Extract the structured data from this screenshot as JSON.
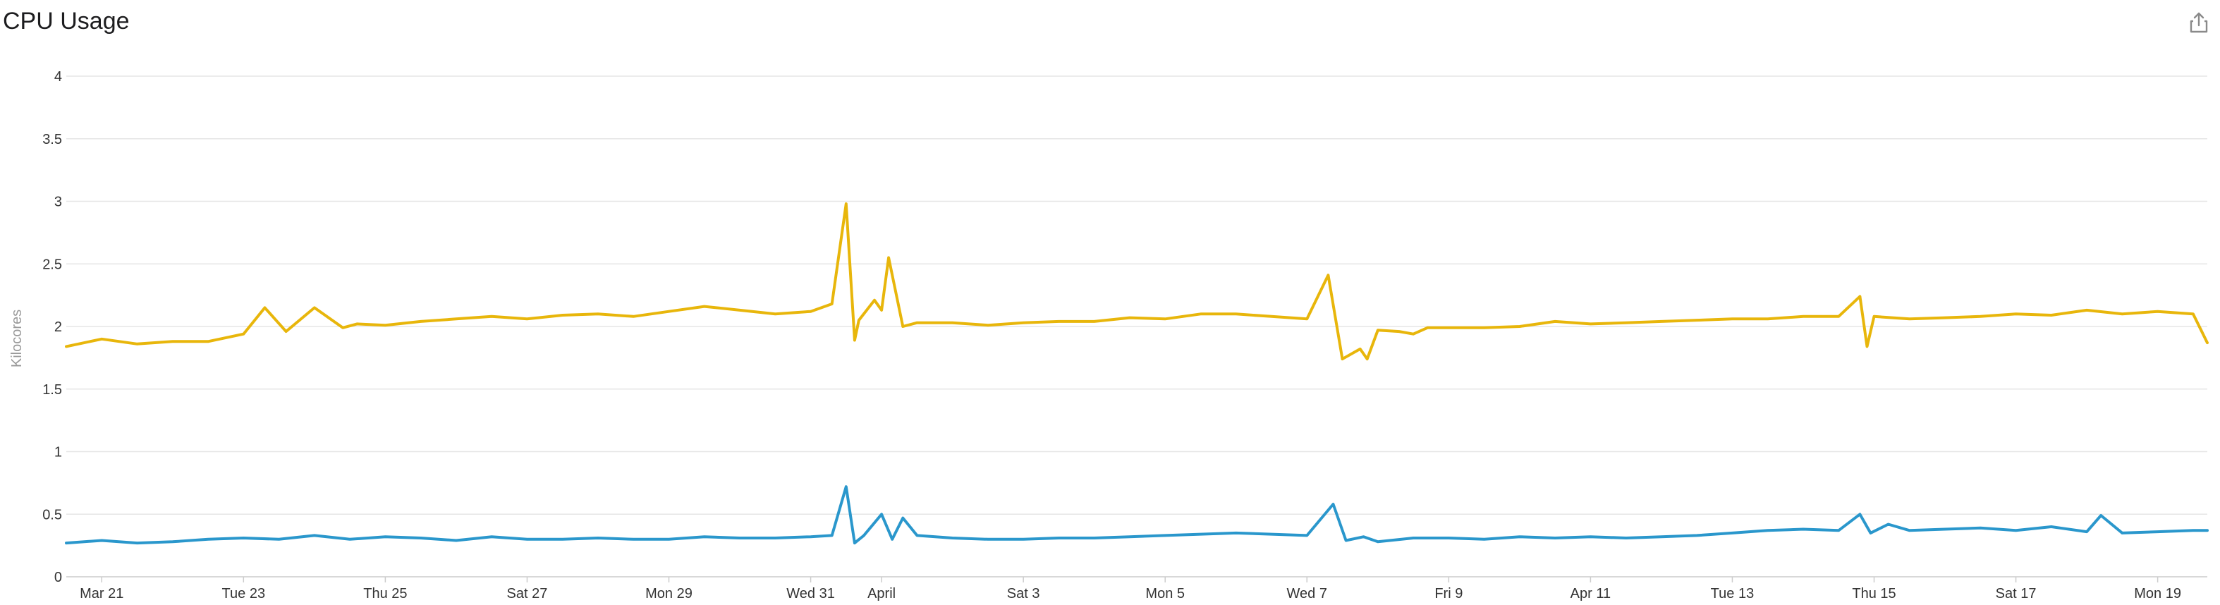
{
  "title": "CPU Usage",
  "icons": {
    "export": "share-export-icon"
  },
  "chart_data": {
    "type": "line",
    "title": "CPU Usage",
    "ylabel": "Kilocores",
    "xlabel": "",
    "ylim": [
      0,
      4
    ],
    "yticks": [
      0,
      0.5,
      1,
      1.5,
      2,
      2.5,
      3,
      3.5,
      4
    ],
    "ytick_labels": [
      "0",
      "0.5",
      "1",
      "1.5",
      "2",
      "2.5",
      "3",
      "3.5",
      "4"
    ],
    "x_tick_labels": [
      "Mar 21",
      "Tue 23",
      "Thu 25",
      "Sat 27",
      "Mon 29",
      "Wed 31",
      "April",
      "Sat 3",
      "Mon 5",
      "Wed 7",
      "Fri 9",
      "Apr 11",
      "Tue 13",
      "Thu 15",
      "Sat 17",
      "Mon 19"
    ],
    "x_tick_days": [
      1,
      3,
      5,
      7,
      9,
      11,
      12,
      14,
      16,
      18,
      20,
      22,
      24,
      26,
      28,
      30
    ],
    "x_range_days": [
      0.5,
      30.7
    ],
    "grid": true,
    "legend": "none",
    "series": [
      {
        "color": "#e8b60b",
        "x": [
          0.5,
          1.0,
          1.5,
          2.0,
          2.5,
          3.0,
          3.3,
          3.6,
          4.0,
          4.4,
          4.6,
          5.0,
          5.5,
          6.0,
          6.5,
          7.0,
          7.5,
          8.0,
          8.5,
          9.0,
          9.5,
          10.0,
          10.5,
          11.0,
          11.3,
          11.5,
          11.62,
          11.68,
          11.9,
          12.0,
          12.1,
          12.3,
          12.5,
          13.0,
          13.5,
          14.0,
          14.5,
          15.0,
          15.5,
          16.0,
          16.5,
          17.0,
          17.5,
          18.0,
          18.3,
          18.5,
          18.75,
          18.85,
          19.0,
          19.3,
          19.5,
          19.7,
          20.0,
          20.5,
          21.0,
          21.5,
          22.0,
          22.5,
          23.0,
          23.5,
          24.0,
          24.5,
          25.0,
          25.5,
          25.8,
          25.9,
          26.0,
          26.5,
          27.0,
          27.5,
          28.0,
          28.5,
          29.0,
          29.5,
          30.0,
          30.5,
          30.7
        ],
        "y": [
          1.84,
          1.9,
          1.86,
          1.88,
          1.88,
          1.94,
          2.15,
          1.96,
          2.15,
          1.99,
          2.02,
          2.01,
          2.04,
          2.06,
          2.08,
          2.06,
          2.09,
          2.1,
          2.08,
          2.12,
          2.16,
          2.13,
          2.1,
          2.12,
          2.18,
          2.98,
          1.89,
          2.05,
          2.21,
          2.13,
          2.55,
          2.0,
          2.03,
          2.03,
          2.01,
          2.03,
          2.04,
          2.04,
          2.07,
          2.06,
          2.1,
          2.1,
          2.08,
          2.06,
          2.41,
          1.74,
          1.82,
          1.74,
          1.97,
          1.96,
          1.94,
          1.99,
          1.99,
          1.99,
          2.0,
          2.04,
          2.02,
          2.03,
          2.04,
          2.05,
          2.06,
          2.06,
          2.08,
          2.08,
          2.24,
          1.84,
          2.08,
          2.06,
          2.07,
          2.08,
          2.1,
          2.09,
          2.13,
          2.1,
          2.12,
          2.1,
          1.87
        ]
      },
      {
        "color": "#2a97cc",
        "x": [
          0.5,
          1.0,
          1.5,
          2.0,
          2.5,
          3.0,
          3.5,
          4.0,
          4.5,
          5.0,
          5.5,
          6.0,
          6.5,
          7.0,
          7.5,
          8.0,
          8.5,
          9.0,
          9.5,
          10.0,
          10.5,
          11.0,
          11.3,
          11.5,
          11.62,
          11.75,
          12.0,
          12.15,
          12.3,
          12.5,
          13.0,
          13.5,
          14.0,
          14.5,
          15.0,
          15.5,
          16.0,
          16.5,
          17.0,
          17.5,
          18.0,
          18.37,
          18.55,
          18.8,
          19.0,
          19.5,
          20.0,
          20.5,
          21.0,
          21.5,
          22.0,
          22.5,
          23.0,
          23.5,
          24.0,
          24.5,
          25.0,
          25.5,
          25.8,
          25.95,
          26.2,
          26.5,
          27.0,
          27.5,
          28.0,
          28.5,
          29.0,
          29.2,
          29.5,
          30.0,
          30.5,
          30.7
        ],
        "y": [
          0.27,
          0.29,
          0.27,
          0.28,
          0.3,
          0.31,
          0.3,
          0.33,
          0.3,
          0.32,
          0.31,
          0.29,
          0.32,
          0.3,
          0.3,
          0.31,
          0.3,
          0.3,
          0.32,
          0.31,
          0.31,
          0.32,
          0.33,
          0.72,
          0.27,
          0.33,
          0.5,
          0.3,
          0.47,
          0.33,
          0.31,
          0.3,
          0.3,
          0.31,
          0.31,
          0.32,
          0.33,
          0.34,
          0.35,
          0.34,
          0.33,
          0.58,
          0.29,
          0.32,
          0.28,
          0.31,
          0.31,
          0.3,
          0.32,
          0.31,
          0.32,
          0.31,
          0.32,
          0.33,
          0.35,
          0.37,
          0.38,
          0.37,
          0.5,
          0.35,
          0.42,
          0.37,
          0.38,
          0.39,
          0.37,
          0.4,
          0.36,
          0.49,
          0.35,
          0.36,
          0.37,
          0.37
        ]
      }
    ]
  }
}
